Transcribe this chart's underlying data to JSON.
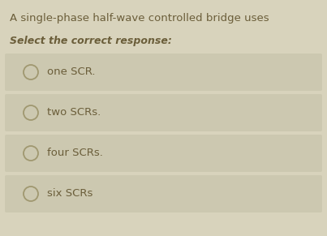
{
  "bg_color": "#d8d3bc",
  "option_bg_color": "#ccc8b0",
  "title": "A single-phase half-wave controlled bridge uses",
  "subtitle": "Select the correct response:",
  "options": [
    "one SCR.",
    "two SCRs.",
    "four SCRs.",
    "six SCRs"
  ],
  "title_fontsize": 9.5,
  "subtitle_fontsize": 9.0,
  "option_fontsize": 9.5,
  "title_color": "#6b5e3a",
  "subtitle_color": "#6b5e3a",
  "option_text_color": "#6b5e3a",
  "circle_edge_color": "#a09870",
  "fig_width": 4.03,
  "fig_height": 2.91,
  "dpi": 100
}
